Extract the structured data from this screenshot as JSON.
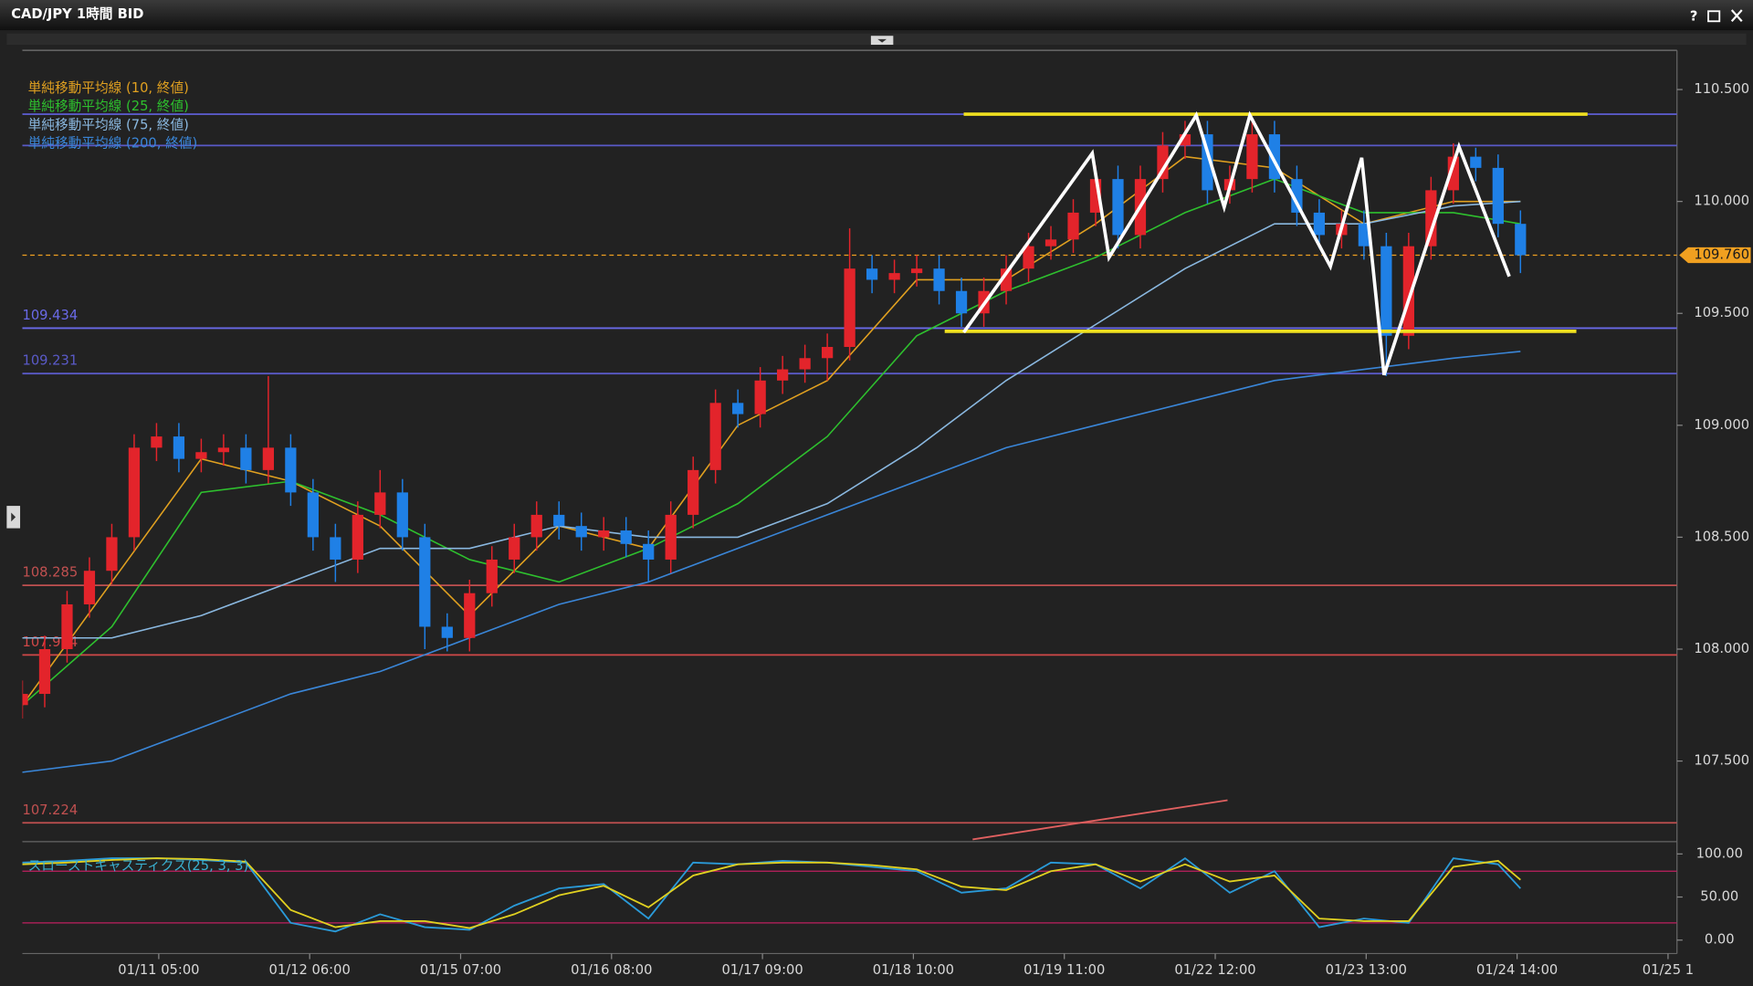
{
  "window": {
    "title": "CAD/JPY 1時間 BID",
    "help": "?"
  },
  "chart_data": {
    "type": "candlestick",
    "xlim": [
      0,
      74
    ],
    "ylim": [
      107.14,
      110.675
    ],
    "x": [
      0,
      1,
      2,
      3,
      4,
      5,
      6,
      7,
      8,
      9,
      10,
      11,
      12,
      13,
      14,
      15,
      16,
      17,
      18,
      19,
      20,
      21,
      22,
      23,
      24,
      25,
      26,
      27,
      28,
      29,
      30,
      31,
      32,
      33,
      34,
      35,
      36,
      37,
      38,
      39,
      40,
      41,
      42,
      43,
      44,
      45,
      46,
      47,
      48,
      49,
      50,
      51,
      52,
      53,
      54,
      55,
      56,
      57,
      58,
      59,
      60,
      61,
      62,
      63,
      64,
      65,
      66,
      67
    ],
    "open": [
      107.75,
      107.8,
      108.0,
      108.2,
      108.35,
      108.5,
      108.9,
      108.95,
      108.85,
      108.88,
      108.9,
      108.8,
      108.9,
      108.7,
      108.5,
      108.4,
      108.6,
      108.7,
      108.5,
      108.1,
      108.05,
      108.25,
      108.4,
      108.5,
      108.6,
      108.55,
      108.5,
      108.53,
      108.47,
      108.4,
      108.6,
      108.8,
      109.1,
      109.05,
      109.2,
      109.25,
      109.3,
      109.35,
      109.7,
      109.65,
      109.68,
      109.7,
      109.6,
      109.5,
      109.6,
      109.7,
      109.8,
      109.83,
      109.95,
      110.1,
      109.85,
      110.1,
      110.25,
      110.3,
      110.05,
      110.1,
      110.3,
      110.1,
      109.95,
      109.85,
      109.9,
      109.8,
      109.4,
      109.8,
      110.05,
      110.2,
      110.15,
      109.9
    ],
    "high": [
      107.86,
      108.06,
      108.26,
      108.41,
      108.56,
      108.96,
      109.01,
      109.01,
      108.94,
      108.96,
      108.96,
      109.22,
      108.96,
      108.76,
      108.56,
      108.66,
      108.8,
      108.76,
      108.56,
      108.16,
      108.31,
      108.46,
      108.56,
      108.66,
      108.66,
      108.61,
      108.59,
      108.59,
      108.53,
      108.66,
      108.86,
      109.16,
      109.16,
      109.26,
      109.31,
      109.36,
      109.41,
      109.88,
      109.76,
      109.74,
      109.76,
      109.76,
      109.66,
      109.66,
      109.76,
      109.86,
      109.89,
      110.01,
      110.16,
      110.16,
      110.16,
      110.31,
      110.36,
      110.36,
      110.16,
      110.36,
      110.36,
      110.16,
      110.01,
      109.96,
      109.96,
      109.86,
      109.86,
      110.11,
      110.26,
      110.24,
      110.21,
      109.96
    ],
    "low": [
      107.69,
      107.74,
      107.94,
      108.14,
      108.29,
      108.44,
      108.84,
      108.79,
      108.79,
      108.82,
      108.74,
      108.74,
      108.64,
      108.44,
      108.3,
      108.34,
      108.54,
      108.44,
      108.0,
      107.99,
      107.99,
      108.19,
      108.34,
      108.44,
      108.49,
      108.44,
      108.44,
      108.41,
      108.3,
      108.34,
      108.54,
      108.74,
      108.99,
      108.99,
      109.14,
      109.19,
      109.2,
      109.29,
      109.59,
      109.59,
      109.62,
      109.54,
      109.44,
      109.44,
      109.54,
      109.64,
      109.74,
      109.77,
      109.89,
      109.79,
      109.79,
      110.04,
      110.19,
      109.99,
      109.99,
      110.04,
      110.04,
      109.89,
      109.79,
      109.79,
      109.74,
      109.22,
      109.34,
      109.74,
      109.99,
      110.09,
      109.84,
      109.68
    ],
    "close": [
      107.8,
      108.0,
      108.2,
      108.35,
      108.5,
      108.9,
      108.95,
      108.85,
      108.88,
      108.9,
      108.8,
      108.9,
      108.7,
      108.5,
      108.4,
      108.6,
      108.7,
      108.5,
      108.1,
      108.05,
      108.25,
      108.4,
      108.5,
      108.6,
      108.55,
      108.5,
      108.53,
      108.47,
      108.4,
      108.6,
      108.8,
      109.1,
      109.05,
      109.2,
      109.25,
      109.3,
      109.35,
      109.7,
      109.65,
      109.68,
      109.7,
      109.6,
      109.5,
      109.6,
      109.7,
      109.8,
      109.83,
      109.95,
      110.1,
      109.85,
      110.1,
      110.25,
      110.3,
      110.05,
      110.1,
      110.3,
      110.1,
      109.95,
      109.85,
      109.9,
      109.8,
      109.4,
      109.8,
      110.05,
      110.2,
      110.15,
      109.9,
      109.76
    ],
    "up_color": "#e3242b",
    "down_color": "#1f80e6",
    "indicators": [
      {
        "name": "単純移動平均線 (10, 終値)",
        "color": "#e0a020",
        "x": [
          0,
          4,
          8,
          12,
          16,
          20,
          24,
          28,
          32,
          36,
          40,
          44,
          48,
          52,
          56,
          60,
          64,
          67
        ],
        "values": [
          107.75,
          108.3,
          108.85,
          108.75,
          108.55,
          108.15,
          108.55,
          108.45,
          109.0,
          109.2,
          109.65,
          109.65,
          109.9,
          110.2,
          110.15,
          109.9,
          110.0,
          110.0
        ]
      },
      {
        "name": "単純移動平均線 (25, 終値)",
        "color": "#2ec02e",
        "x": [
          0,
          4,
          8,
          12,
          16,
          20,
          24,
          28,
          32,
          36,
          40,
          44,
          48,
          52,
          56,
          60,
          64,
          67
        ],
        "values": [
          107.75,
          108.1,
          108.7,
          108.75,
          108.6,
          108.4,
          108.3,
          108.45,
          108.65,
          108.95,
          109.4,
          109.6,
          109.75,
          109.95,
          110.1,
          109.95,
          109.95,
          109.9
        ]
      },
      {
        "name": "単純移動平均線 (75, 終値)",
        "color": "#8ab8e0",
        "x": [
          0,
          4,
          8,
          12,
          16,
          20,
          24,
          28,
          32,
          36,
          40,
          44,
          48,
          52,
          56,
          60,
          64,
          67
        ],
        "values": [
          108.05,
          108.05,
          108.15,
          108.3,
          108.45,
          108.45,
          108.55,
          108.5,
          108.5,
          108.65,
          108.9,
          109.2,
          109.45,
          109.7,
          109.9,
          109.9,
          109.98,
          110.0
        ]
      },
      {
        "name": "単純移動平均線 (200, 終値)",
        "color": "#3a86d8",
        "x": [
          0,
          4,
          8,
          12,
          16,
          20,
          24,
          28,
          32,
          36,
          40,
          44,
          48,
          52,
          56,
          60,
          64,
          67
        ],
        "values": [
          107.45,
          107.5,
          107.65,
          107.8,
          107.9,
          108.05,
          108.2,
          108.3,
          108.45,
          108.6,
          108.75,
          108.9,
          109.0,
          109.1,
          109.2,
          109.25,
          109.3,
          109.33
        ]
      }
    ],
    "levels": [
      {
        "value": 110.39,
        "color": "#5a5ac8"
      },
      {
        "value": 110.25,
        "color": "#5a5ac8"
      },
      {
        "value": 109.434,
        "color": "#6a6ae8",
        "show_label": true
      },
      {
        "value": 109.231,
        "color": "#5a5ac8",
        "show_label": true
      },
      {
        "value": 108.285,
        "color": "#c05050",
        "show_label": true
      },
      {
        "value": 107.974,
        "color": "#d04848",
        "show_label": true
      },
      {
        "value": 107.224,
        "color": "#c05050",
        "show_label": true
      }
    ],
    "last_price": {
      "value": 109.76,
      "label": "109.760",
      "color": "#f0a020"
    },
    "drawings": [
      {
        "color": "#f0e020",
        "width": 3,
        "points": [
          [
            42.1,
            110.39
          ],
          [
            70,
            110.39
          ]
        ]
      },
      {
        "color": "#f0e020",
        "width": 3,
        "points": [
          [
            41.25,
            109.42
          ],
          [
            69.5,
            109.42
          ]
        ]
      },
      {
        "color": "#ffffff",
        "width": 3,
        "points": [
          [
            42.1,
            109.415
          ],
          [
            47.85,
            110.215
          ],
          [
            48.6,
            109.75
          ],
          [
            52.5,
            110.385
          ],
          [
            53.75,
            109.975
          ],
          [
            54.9,
            110.385
          ],
          [
            58.5,
            109.71
          ],
          [
            59.9,
            110.195
          ],
          [
            60.9,
            109.225
          ],
          [
            64.25,
            110.245
          ],
          [
            66.5,
            109.665
          ]
        ]
      },
      {
        "color": "#e06060",
        "width": 1.5,
        "points": [
          [
            42.5,
            107.15
          ],
          [
            53.9,
            107.325
          ]
        ]
      }
    ],
    "yticks": [
      {
        "value": 107.5,
        "label": "107.500"
      },
      {
        "value": 108,
        "label": "108.000"
      },
      {
        "value": 108.5,
        "label": "108.500"
      },
      {
        "value": 109,
        "label": "109.000"
      },
      {
        "value": 109.5,
        "label": "109.500"
      },
      {
        "value": 110,
        "label": "110.000"
      },
      {
        "value": 110.5,
        "label": "110.500"
      }
    ],
    "xticks": [
      {
        "value": 6.1,
        "label": "01/11 05:00"
      },
      {
        "value": 12.85,
        "label": "01/12 06:00"
      },
      {
        "value": 19.6,
        "label": "01/15 07:00"
      },
      {
        "value": 26.35,
        "label": "01/16 08:00"
      },
      {
        "value": 33.1,
        "label": "01/17 09:00"
      },
      {
        "value": 39.85,
        "label": "01/18 10:00"
      },
      {
        "value": 46.6,
        "label": "01/19 11:00"
      },
      {
        "value": 53.35,
        "label": "01/22 12:00"
      },
      {
        "value": 60.1,
        "label": "01/23 13:00"
      },
      {
        "value": 66.85,
        "label": "01/24 14:00"
      },
      {
        "value": 73.6,
        "label": "01/25 1"
      }
    ],
    "stochastic": {
      "title": "スローストキャスティクス(25, 3, 3)",
      "ylim": [
        -15.6,
        107.8
      ],
      "yticks": [
        {
          "value": 0,
          "label": "0.00"
        },
        {
          "value": 50,
          "label": "50.00"
        },
        {
          "value": 100,
          "label": "100.00"
        }
      ],
      "bands": [
        20,
        80
      ],
      "band_color": "#c02060",
      "x": [
        0,
        2,
        4,
        6,
        8,
        10,
        12,
        14,
        16,
        18,
        20,
        22,
        24,
        26,
        28,
        30,
        32,
        34,
        36,
        38,
        40,
        42,
        44,
        46,
        48,
        50,
        52,
        54,
        56,
        58,
        60,
        62,
        64,
        66,
        67
      ],
      "series": [
        {
          "color": "#2a9ad8",
          "values": [
            90,
            92,
            95,
            95,
            93,
            90,
            20,
            10,
            30,
            15,
            12,
            40,
            60,
            65,
            25,
            90,
            88,
            92,
            90,
            85,
            80,
            55,
            60,
            90,
            88,
            60,
            95,
            55,
            80,
            15,
            25,
            20,
            95,
            88,
            60
          ]
        },
        {
          "color": "#e0d020",
          "values": [
            88,
            90,
            93,
            95,
            94,
            91,
            35,
            15,
            22,
            22,
            14,
            30,
            52,
            63,
            38,
            75,
            88,
            90,
            90,
            87,
            82,
            62,
            58,
            80,
            88,
            68,
            88,
            68,
            75,
            25,
            22,
            22,
            85,
            92,
            70
          ]
        }
      ]
    }
  }
}
